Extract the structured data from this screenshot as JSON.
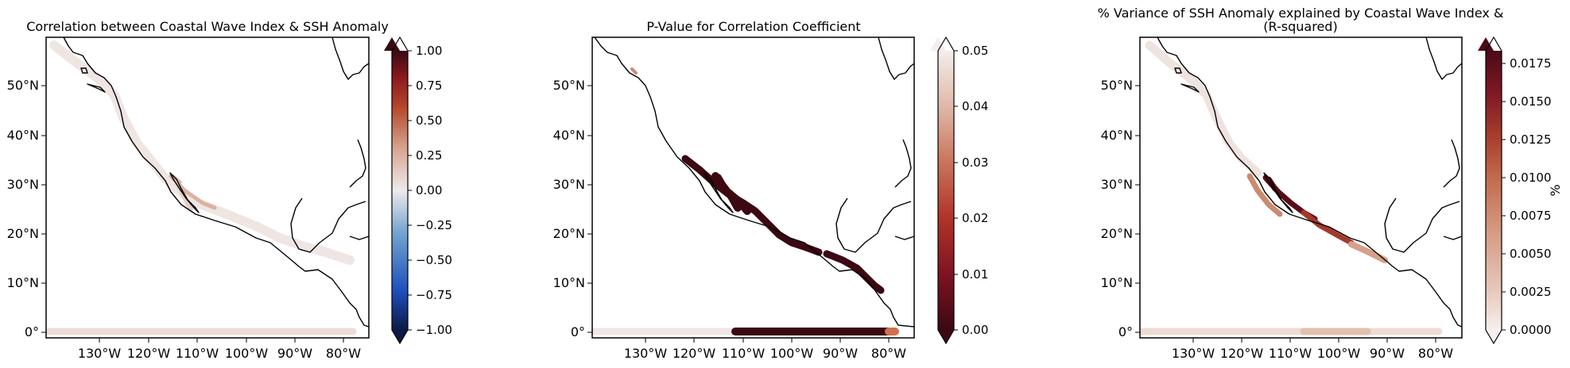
{
  "chart_data": [
    {
      "type": "map",
      "title": "Correlation between Coastal Wave Index & SSH Anomaly",
      "colormap": "diverging dark-blue to white to dark-red (balance)",
      "extend": "both",
      "xlim": [
        -140,
        -78
      ],
      "ylim": [
        -2,
        60
      ],
      "x_ticks": [
        "130°W",
        "120°W",
        "110°W",
        "100°W",
        "90°W",
        "80°W"
      ],
      "y_ticks": [
        "0°",
        "10°N",
        "20°N",
        "30°N",
        "40°N",
        "50°N"
      ],
      "colorbar": {
        "range": [
          -1.0,
          1.0
        ],
        "ticks": [
          "1.00",
          "0.75",
          "0.50",
          "0.25",
          "0.00",
          "−0.25",
          "−0.50",
          "−0.75",
          "−1.00"
        ],
        "label": ""
      },
      "colors": [
        "#0b1a46",
        "#1f4fbd",
        "#74a5d0",
        "#eeeaea",
        "#d7a48f",
        "#b3462b",
        "#8e1a1f",
        "#3b0a12"
      ],
      "features": {
        "equator_band_value": 0.03,
        "pacific_coast_value": 0.05,
        "gulf_of_california_value": 0.35
      }
    },
    {
      "type": "map",
      "title": "P-Value for Correlation Coefficient",
      "colormap": "sequential white to dark maroon (reversed amp)",
      "extend": "both",
      "xlim": [
        -140,
        -78
      ],
      "ylim": [
        -2,
        60
      ],
      "x_ticks": [
        "130°W",
        "120°W",
        "110°W",
        "100°W",
        "90°W",
        "80°W"
      ],
      "y_ticks": [
        "0°",
        "10°N",
        "20°N",
        "30°N",
        "40°N",
        "50°N"
      ],
      "colorbar": {
        "range": [
          0.0,
          0.05
        ],
        "ticks": [
          "0.05",
          "0.04",
          "0.03",
          "0.02",
          "0.01",
          "0.00"
        ],
        "label": ""
      },
      "colors": [
        "#f3eeec",
        "#e0b8a8",
        "#c9745a",
        "#b03428",
        "#7e1422",
        "#3c0812"
      ],
      "features": {
        "significant_coast_value": 0.0,
        "equator_east_value": 0.0,
        "equator_west_value": 0.05,
        "equator_far_east_value": 0.03
      }
    },
    {
      "type": "map",
      "title": "% Variance of SSH Anomaly explained by Coastal Wave Index &",
      "subtitle": "(R-squared)",
      "colormap": "sequential white to dark red (amp)",
      "extend": "both",
      "xlim": [
        -140,
        -78
      ],
      "ylim": [
        -2,
        60
      ],
      "x_ticks": [
        "130°W",
        "120°W",
        "110°W",
        "100°W",
        "90°W",
        "80°W"
      ],
      "y_ticks": [
        "0°",
        "10°N",
        "20°N",
        "30°N",
        "40°N",
        "50°N"
      ],
      "colorbar": {
        "range": [
          0.0,
          0.0185
        ],
        "ticks": [
          "0.0175",
          "0.0150",
          "0.0125",
          "0.0100",
          "0.0075",
          "0.0050",
          "0.0025",
          "0.0000"
        ],
        "label": "%"
      },
      "colors": [
        "#f5efed",
        "#e6c6b8",
        "#d59b82",
        "#c1694c",
        "#a53c2c",
        "#7e1824",
        "#4a0a17"
      ],
      "features": {
        "gulf_of_california_value": 0.016,
        "mexico_coast_value": 0.012,
        "equator_band_value": 0.004
      }
    }
  ]
}
